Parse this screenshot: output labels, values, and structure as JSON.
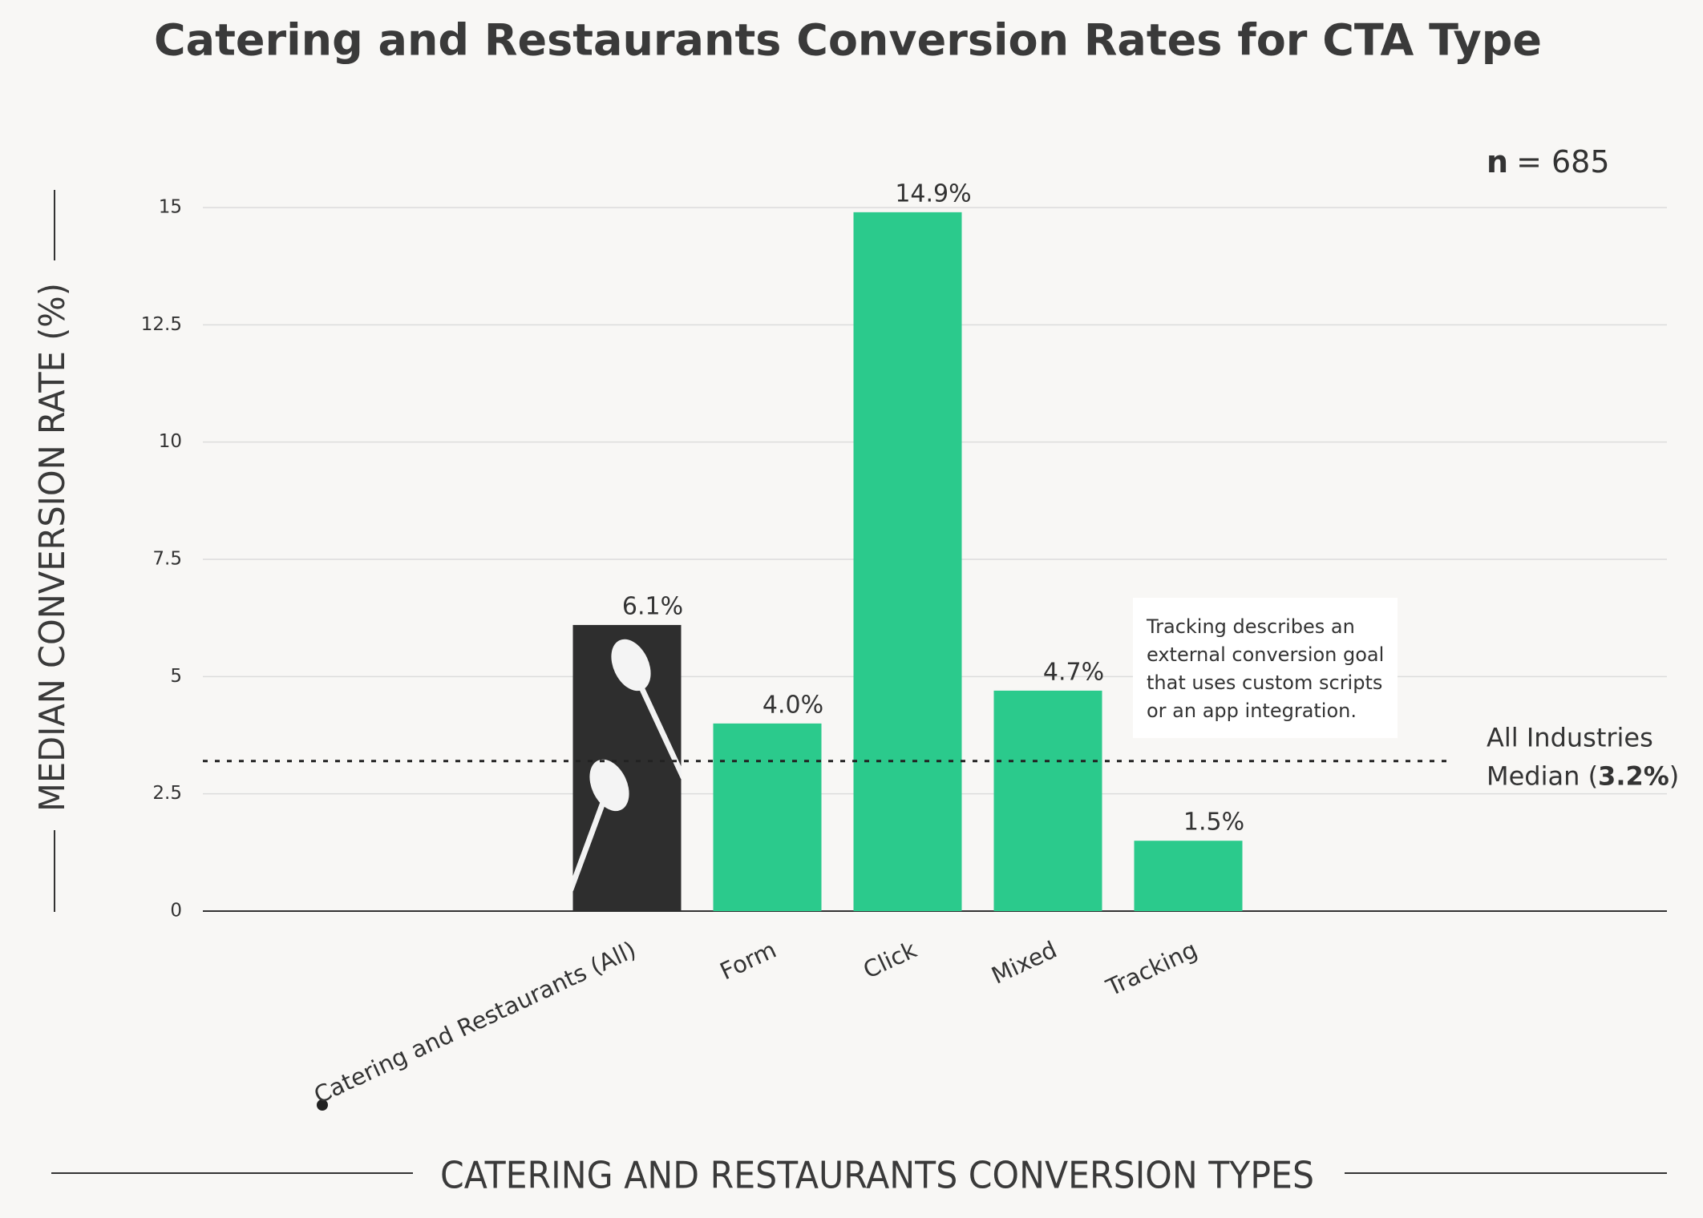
{
  "chart_data": {
    "type": "bar",
    "title": "Catering and Restaurants Conversion Rates for CTA Type",
    "y_axis_title": "MEDIAN CONVERSION RATE (%)",
    "x_axis_title": "CATERING AND RESTAURANTS CONVERSION TYPES",
    "categories": [
      "Catering and Restaurants (All)",
      "Form",
      "Click",
      "Mixed",
      "Tracking"
    ],
    "values": [
      6.1,
      4.0,
      14.9,
      4.7,
      1.5
    ],
    "value_labels": [
      "6.1%",
      "4.0%",
      "14.9%",
      "4.7%",
      "1.5%"
    ],
    "colors": [
      "#2e2e2e",
      "#2bca8c",
      "#2bca8c",
      "#2bca8c",
      "#2bca8c"
    ],
    "ylim": [
      0,
      15
    ],
    "yticks": [
      0,
      2.5,
      5,
      7.5,
      10,
      12.5,
      15
    ],
    "grid": true,
    "reference_line": {
      "value": 3.2,
      "label_line1": "All Industries",
      "label_prefix": "Median (",
      "label_value": "3.2%",
      "label_suffix": ")"
    },
    "sample_note": {
      "symbol": "n",
      "text": "= 685"
    },
    "annotation_lines": [
      "Tracking describes an",
      "external conversion goal",
      "that uses custom scripts",
      "or an app integration."
    ]
  }
}
